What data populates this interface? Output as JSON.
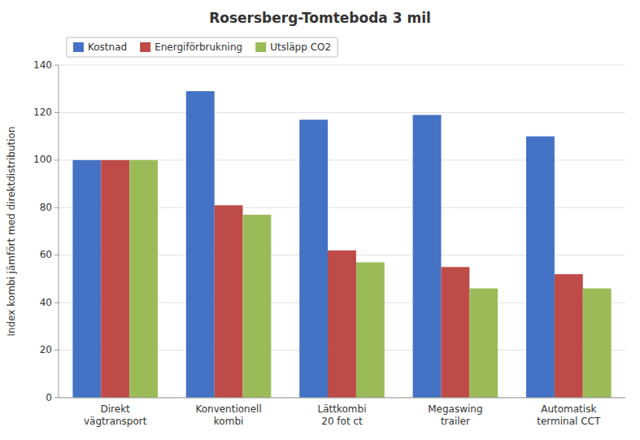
{
  "chart_data": {
    "type": "bar",
    "title": "Rosersberg-Tomteboda 3 mil",
    "ylabel": "Index kombi jämfört med direktdistribution",
    "categories": [
      "Direkt\nvägtransport",
      "Konventionell\nkombi",
      "Lättkombi\n20 fot ct",
      "Megaswing\ntrailer",
      "Automatisk\nterminal CCT"
    ],
    "series": [
      {
        "name": "Kostnad",
        "color": "#4472C4",
        "values": [
          100,
          129,
          117,
          119,
          110
        ]
      },
      {
        "name": "Energiförbrukning",
        "color": "#BE4B48",
        "values": [
          100,
          81,
          62,
          55,
          52
        ]
      },
      {
        "name": "Utsläpp CO2",
        "color": "#9BBB59",
        "values": [
          100,
          77,
          57,
          46,
          46
        ]
      }
    ],
    "ylim": [
      0,
      140
    ],
    "yticks": [
      0,
      20,
      40,
      60,
      80,
      100,
      120,
      140
    ],
    "grid": true,
    "legend": "upper left"
  }
}
